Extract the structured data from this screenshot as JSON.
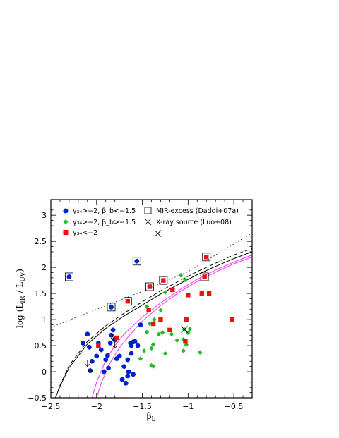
{
  "chart_data": {
    "type": "scatter",
    "xlabel": "β_b",
    "ylabel": "log (L_IR / L_UV)",
    "xlim": [
      -2.5,
      -0.3
    ],
    "ylim": [
      -0.5,
      3.3
    ],
    "x_ticks": [
      "−2.5",
      "−2",
      "−1.5",
      "−1",
      "−0.5"
    ],
    "y_ticks": [
      "−0.5",
      "0",
      "0.5",
      "1",
      "1.5",
      "2",
      "2.5",
      "3"
    ],
    "legend": [
      "γ₃₄>−2, β_b<−1.5",
      "γ₃₄>−2, β_b>−1.5",
      "γ₃₄<−2",
      "MIR-excess (Daddi+07a)",
      "X-ray source (Luo+08)"
    ],
    "colors": {
      "blue": "#0022cc",
      "green": "#22bb22",
      "red": "#ee1111",
      "magenta": "#ff33ff",
      "dotted": "#333333"
    },
    "series": [
      {
        "marker": "circle",
        "color": "#0022cc",
        "points": [
          [
            -2.3,
            1.82
          ],
          [
            -1.84,
            1.24
          ],
          [
            -1.56,
            2.12
          ],
          [
            -1.52,
            0.9
          ],
          [
            -2.15,
            0.55
          ],
          [
            -2.1,
            0.72
          ],
          [
            -2.08,
            0.47
          ],
          [
            -2.05,
            0.2
          ],
          [
            -2.07,
            0.02
          ],
          [
            -2.0,
            0.3
          ],
          [
            -1.98,
            0.55
          ],
          [
            -1.95,
            0.42
          ],
          [
            -1.92,
            0.0
          ],
          [
            -1.9,
            0.23
          ],
          [
            -1.88,
            0.31
          ],
          [
            -1.87,
            0.07
          ],
          [
            -1.85,
            0.55
          ],
          [
            -1.84,
            0.7
          ],
          [
            -1.82,
            0.8
          ],
          [
            -1.8,
            0.61
          ],
          [
            -1.78,
            0.25
          ],
          [
            -1.75,
            0.3
          ],
          [
            -1.7,
            0.1
          ],
          [
            -1.68,
            -0.22
          ],
          [
            -1.66,
            -0.08
          ],
          [
            -1.63,
            0.55
          ],
          [
            -1.62,
            0.35
          ],
          [
            -1.6,
            0.57
          ],
          [
            -1.58,
            0.58
          ],
          [
            -1.55,
            0.5
          ],
          [
            -1.66,
            0.23
          ],
          [
            -1.62,
            0.5
          ],
          [
            -1.6,
            -0.05
          ],
          [
            -1.65,
            0.0
          ],
          [
            -1.72,
            -0.15
          ]
        ]
      },
      {
        "marker": "diamond",
        "color": "#22bb22",
        "points": [
          [
            -1.42,
            1.63
          ],
          [
            -1.08,
            1.85
          ],
          [
            -1.03,
            1.76
          ],
          [
            -1.25,
            1.52
          ],
          [
            -1.45,
            1.25
          ],
          [
            -1.42,
            0.92
          ],
          [
            -1.37,
            1.0
          ],
          [
            -1.3,
            1.18
          ],
          [
            -1.45,
            0.76
          ],
          [
            -1.32,
            0.72
          ],
          [
            -1.38,
            0.52
          ],
          [
            -1.28,
            0.75
          ],
          [
            -1.18,
            0.72
          ],
          [
            -1.12,
            0.6
          ],
          [
            -1.05,
            0.62
          ],
          [
            -1.0,
            0.75
          ],
          [
            -1.02,
            0.52
          ],
          [
            -1.05,
            0.4
          ],
          [
            -1.25,
            0.35
          ],
          [
            -1.4,
            0.45
          ],
          [
            -1.48,
            0.4
          ],
          [
            -1.4,
            0.12
          ],
          [
            -1.38,
            0.1
          ],
          [
            -1.52,
            0.25
          ],
          [
            -0.98,
            0.82
          ],
          [
            -0.87,
            0.37
          ],
          [
            -1.04,
            0.81
          ]
        ]
      },
      {
        "marker": "square",
        "color": "#ee1111",
        "points": [
          [
            -0.8,
            2.2
          ],
          [
            -0.82,
            1.82
          ],
          [
            -1.42,
            1.63
          ],
          [
            -1.27,
            1.75
          ],
          [
            -1.66,
            1.35
          ],
          [
            -1.43,
            1.18
          ],
          [
            -1.17,
            1.57
          ],
          [
            -1.0,
            1.47
          ],
          [
            -0.85,
            1.5
          ],
          [
            -0.77,
            1.5
          ],
          [
            -1.38,
            0.92
          ],
          [
            -1.3,
            1.0
          ],
          [
            -1.2,
            0.8
          ],
          [
            -1.03,
            0.58
          ],
          [
            -1.02,
            1.0
          ],
          [
            -0.52,
            1.0
          ],
          [
            -1.98,
            0.5
          ],
          [
            -1.78,
            0.65
          ]
        ]
      }
    ],
    "mir_excess_points": [
      [
        -2.3,
        1.82
      ],
      [
        -1.84,
        1.24
      ],
      [
        -1.56,
        2.12
      ],
      [
        -1.66,
        1.35
      ],
      [
        -1.42,
        1.63
      ],
      [
        -1.27,
        1.75
      ],
      [
        -0.8,
        2.2
      ],
      [
        -0.82,
        1.82
      ]
    ],
    "xray_points": [
      [
        -1.33,
        2.65
      ],
      [
        -1.04,
        0.81
      ]
    ],
    "upper_limits": [
      [
        -2.1,
        0.1
      ],
      [
        -2.07,
        -0.02
      ],
      [
        -1.82,
        0.6
      ],
      [
        -1.8,
        0.45
      ]
    ],
    "curves": [
      {
        "style": "dotted",
        "color": "#333333",
        "points": [
          [
            -2.5,
            0.85
          ],
          [
            -1.5,
            1.54
          ],
          [
            -1.0,
            1.92
          ],
          [
            -0.3,
            2.66
          ]
        ]
      },
      {
        "style": "dashed",
        "color": "#000000",
        "points": [
          [
            -2.45,
            -0.5
          ],
          [
            -2.4,
            -0.26
          ],
          [
            -2.3,
            0.12
          ],
          [
            -2.1,
            0.58
          ],
          [
            -1.9,
            0.88
          ],
          [
            -1.7,
            1.12
          ],
          [
            -1.5,
            1.34
          ],
          [
            -1.3,
            1.55
          ],
          [
            -1.1,
            1.74
          ],
          [
            -0.9,
            1.92
          ],
          [
            -0.7,
            2.08
          ],
          [
            -0.5,
            2.24
          ],
          [
            -0.3,
            2.36
          ]
        ]
      },
      {
        "style": "solid",
        "color": "#000000",
        "points": [
          [
            -2.45,
            -0.5
          ],
          [
            -2.4,
            -0.28
          ],
          [
            -2.3,
            0.08
          ],
          [
            -2.1,
            0.53
          ],
          [
            -1.9,
            0.83
          ],
          [
            -1.7,
            1.07
          ],
          [
            -1.5,
            1.28
          ],
          [
            -1.3,
            1.49
          ],
          [
            -1.1,
            1.68
          ],
          [
            -0.9,
            1.86
          ],
          [
            -0.7,
            2.02
          ],
          [
            -0.5,
            2.17
          ],
          [
            -0.3,
            2.3
          ]
        ]
      },
      {
        "style": "solid",
        "color": "#ff33ff",
        "points": [
          [
            -2.05,
            -0.5
          ],
          [
            -2.0,
            -0.2
          ],
          [
            -1.9,
            0.22
          ],
          [
            -1.8,
            0.5
          ],
          [
            -1.7,
            0.72
          ],
          [
            -1.5,
            1.05
          ],
          [
            -1.3,
            1.32
          ],
          [
            -1.1,
            1.56
          ],
          [
            -0.9,
            1.77
          ],
          [
            -0.7,
            1.95
          ],
          [
            -0.5,
            2.1
          ],
          [
            -0.3,
            2.24
          ]
        ]
      },
      {
        "style": "solid",
        "color": "#ff33ff",
        "points": [
          [
            -2.0,
            -0.5
          ],
          [
            -1.95,
            -0.22
          ],
          [
            -1.85,
            0.18
          ],
          [
            -1.75,
            0.46
          ],
          [
            -1.65,
            0.68
          ],
          [
            -1.5,
            0.97
          ],
          [
            -1.3,
            1.27
          ],
          [
            -1.1,
            1.52
          ],
          [
            -0.9,
            1.73
          ],
          [
            -0.7,
            1.91
          ],
          [
            -0.5,
            2.07
          ],
          [
            -0.3,
            2.2
          ]
        ]
      }
    ]
  }
}
